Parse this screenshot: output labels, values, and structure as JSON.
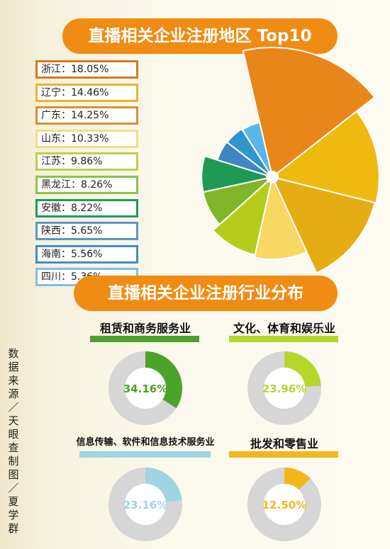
{
  "title": "直播相关企业注册地区 Top10",
  "section2_title": "直播相关企业注册行业分布",
  "source_note": "数据来源／天眼查 制图／夏学群",
  "chart_data": [
    {
      "type": "pie",
      "title": "直播相关企业注册地区 Top10",
      "categories": [
        "浙江",
        "辽宁",
        "广东",
        "山东",
        "江苏",
        "黑龙江",
        "安徽",
        "陕西",
        "海南",
        "四川"
      ],
      "values": [
        18.05,
        14.46,
        14.25,
        10.33,
        9.86,
        8.26,
        8.22,
        5.65,
        5.56,
        5.36
      ],
      "labels": [
        "浙江：18.05%",
        "辽宁：14.46%",
        "广东：14.25%",
        "山东：10.33%",
        "江苏：9.86%",
        "黑龙江：8.26%",
        "安徽：8.22%",
        "陕西：5.65%",
        "海南：5.56%",
        "四川：5.36%"
      ],
      "colors": [
        "#e8861a",
        "#f0b90f",
        "#e5ac13",
        "#f8d862",
        "#b6cc1d",
        "#7fb62b",
        "#1f9a55",
        "#3f87c3",
        "#2f95cc",
        "#58b7e6"
      ],
      "legend_borders": [
        "#d9791b",
        "#e8b430",
        "#d59232",
        "#f2df83",
        "#b6d24b",
        "#8bc34a",
        "#1b9a5c",
        "#5c97c9",
        "#3f8fc9",
        "#7cc0e6"
      ]
    },
    {
      "type": "pie",
      "title": "直播相关企业注册行业分布",
      "categories": [
        "租赁和商务服务业",
        "文化、体育和娱乐业",
        "信息传输、软件和信息技术服务业",
        "批发和零售业"
      ],
      "values": [
        34.16,
        23.96,
        23.16,
        12.5
      ],
      "labels": [
        "34.16%",
        "23.96%",
        "23.16%",
        "12.50%"
      ],
      "colors": [
        "#4ca32a",
        "#b6d62c",
        "#9fd4e0",
        "#f2b71a"
      ],
      "track_color": "#d6d6d6"
    }
  ]
}
